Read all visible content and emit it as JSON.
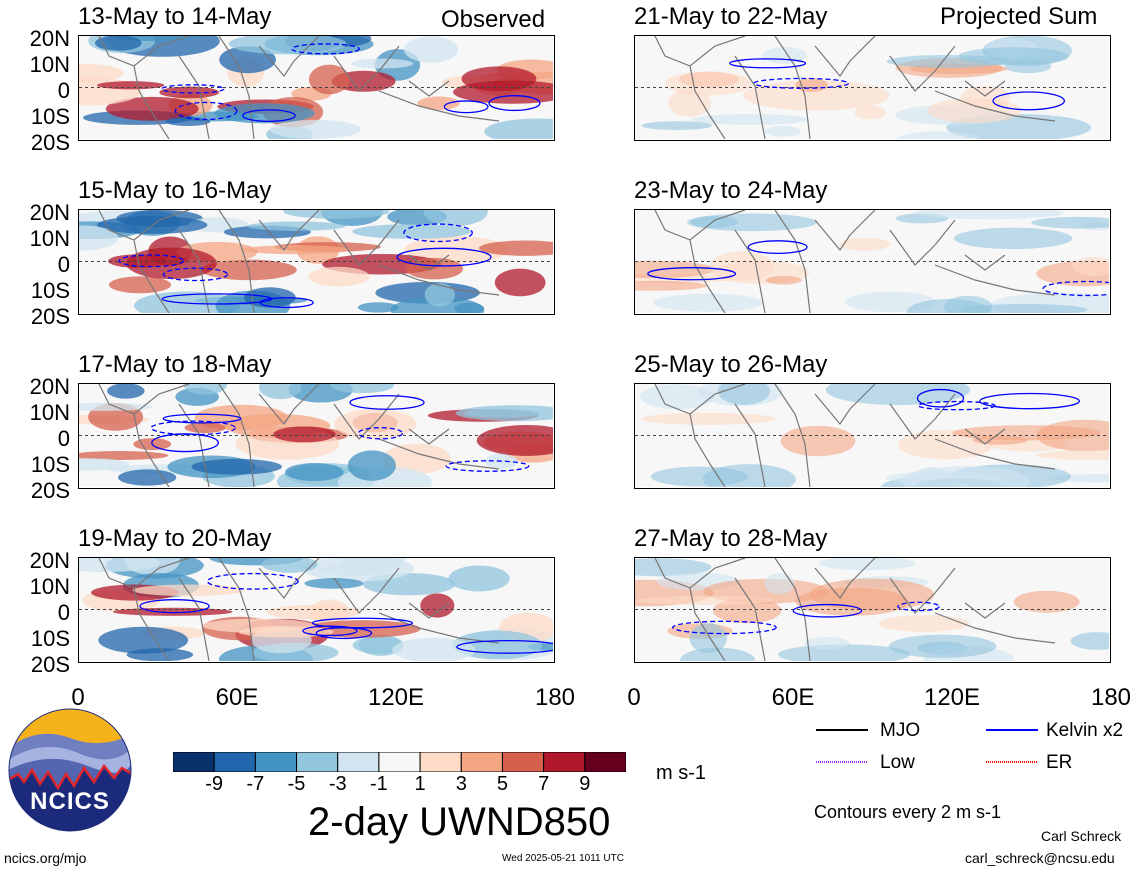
{
  "product_title": "2-day UWND850",
  "units": "m s-1",
  "contour_note": "Contours every 2 m s-1",
  "left_column_label": "Observed",
  "right_column_label": "Projected Sum",
  "lat_labels": [
    "20N",
    "10N",
    "0",
    "10S",
    "20S"
  ],
  "lon_labels": [
    "0",
    "60E",
    "120E",
    "180"
  ],
  "colorbar": {
    "tick_labels": [
      "-9",
      "-7",
      "-5",
      "-3",
      "-1",
      "1",
      "3",
      "5",
      "7",
      "9"
    ],
    "colors": [
      "#08306b",
      "#2166ac",
      "#4393c3",
      "#92c5de",
      "#d1e5f0",
      "#f7f7f7",
      "#fddbc7",
      "#f4a582",
      "#d6604d",
      "#b2182b",
      "#67001f"
    ]
  },
  "legend": [
    {
      "label": "MJO",
      "color": "#000000"
    },
    {
      "label": "Kelvin x2",
      "color": "#0000ff"
    },
    {
      "label": "Low",
      "color": "#9b30ff"
    },
    {
      "label": "ER",
      "color": "#ff0000"
    }
  ],
  "logo_text": "NCICS",
  "footer": {
    "url": "ncics.org/mjo",
    "timestamp": "Wed 2025-05-21 1011 UTC",
    "author": "Carl Schreck",
    "email": "carl_schreck@ncsu.edu"
  },
  "chart_data": [
    {
      "type": "heatmap",
      "title": "13-May to 14-May",
      "column": "Observed",
      "xlim": [
        0,
        180
      ],
      "ylim": [
        -20,
        20
      ]
    },
    {
      "type": "heatmap",
      "title": "15-May to 16-May",
      "column": "Observed",
      "xlim": [
        0,
        180
      ],
      "ylim": [
        -20,
        20
      ]
    },
    {
      "type": "heatmap",
      "title": "17-May to 18-May",
      "column": "Observed",
      "xlim": [
        0,
        180
      ],
      "ylim": [
        -20,
        20
      ]
    },
    {
      "type": "heatmap",
      "title": "19-May to 20-May",
      "column": "Observed",
      "xlim": [
        0,
        180
      ],
      "ylim": [
        -20,
        20
      ]
    },
    {
      "type": "heatmap",
      "title": "21-May to 22-May",
      "column": "Projected Sum",
      "xlim": [
        0,
        180
      ],
      "ylim": [
        -20,
        20
      ]
    },
    {
      "type": "heatmap",
      "title": "23-May to 24-May",
      "column": "Projected Sum",
      "xlim": [
        0,
        180
      ],
      "ylim": [
        -20,
        20
      ]
    },
    {
      "type": "heatmap",
      "title": "25-May to 26-May",
      "column": "Projected Sum",
      "xlim": [
        0,
        180
      ],
      "ylim": [
        -20,
        20
      ]
    },
    {
      "type": "heatmap",
      "title": "27-May to 28-May",
      "column": "Projected Sum",
      "xlim": [
        0,
        180
      ],
      "ylim": [
        -20,
        20
      ]
    }
  ]
}
